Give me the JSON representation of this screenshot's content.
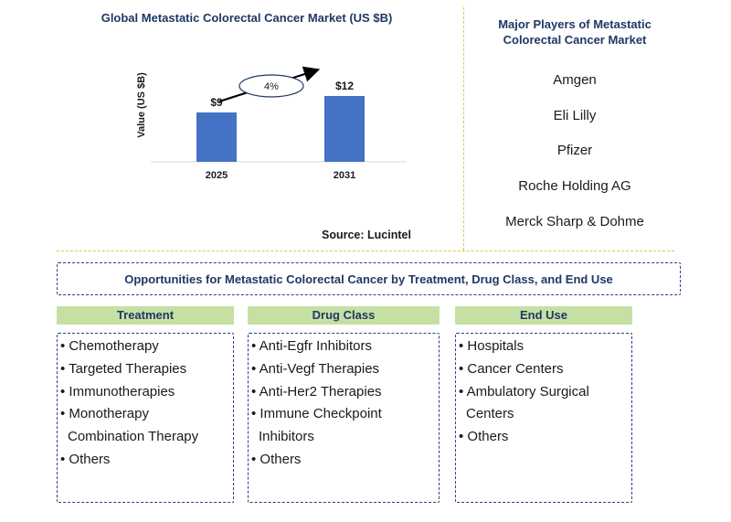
{
  "chart_data": {
    "type": "bar",
    "title": "Global Metastatic Colorectal Cancer Market (US $B)",
    "ylabel": "Value (US $B)",
    "categories": [
      "2025",
      "2031"
    ],
    "values": [
      9,
      12
    ],
    "data_labels": [
      "$9",
      "$12"
    ],
    "annotation": "4%",
    "bar_color": "#4472c4",
    "ylim": [
      0,
      15
    ]
  },
  "source": "Source: Lucintel",
  "players": {
    "title": "Major Players of Metastatic Colorectal Cancer Market",
    "items": [
      "Amgen",
      "Eli Lilly",
      "Pfizer",
      "Roche Holding AG",
      "Merck Sharp & Dohme"
    ]
  },
  "opportunities_title": "Opportunities for Metastatic Colorectal Cancer by Treatment, Drug Class, and End Use",
  "columns": [
    {
      "header": "Treatment",
      "items": [
        "• Chemotherapy",
        "• Targeted Therapies",
        "• Immunotherapies",
        "• Monotherapy",
        "  Combination Therapy",
        "• Others"
      ]
    },
    {
      "header": "Drug Class",
      "items": [
        "• Anti-Egfr Inhibitors",
        "• Anti-Vegf Therapies",
        "• Anti-Her2 Therapies",
        "• Immune Checkpoint",
        "  Inhibitors",
        "• Others"
      ]
    },
    {
      "header": "End Use",
      "items": [
        "• Hospitals",
        "• Cancer Centers",
        "• Ambulatory Surgical",
        "  Centers",
        "• Others"
      ]
    }
  ],
  "colors": {
    "header_green": "#c6e0a4",
    "title_navy": "#1f3864",
    "divider_gold": "#e0c84a"
  }
}
